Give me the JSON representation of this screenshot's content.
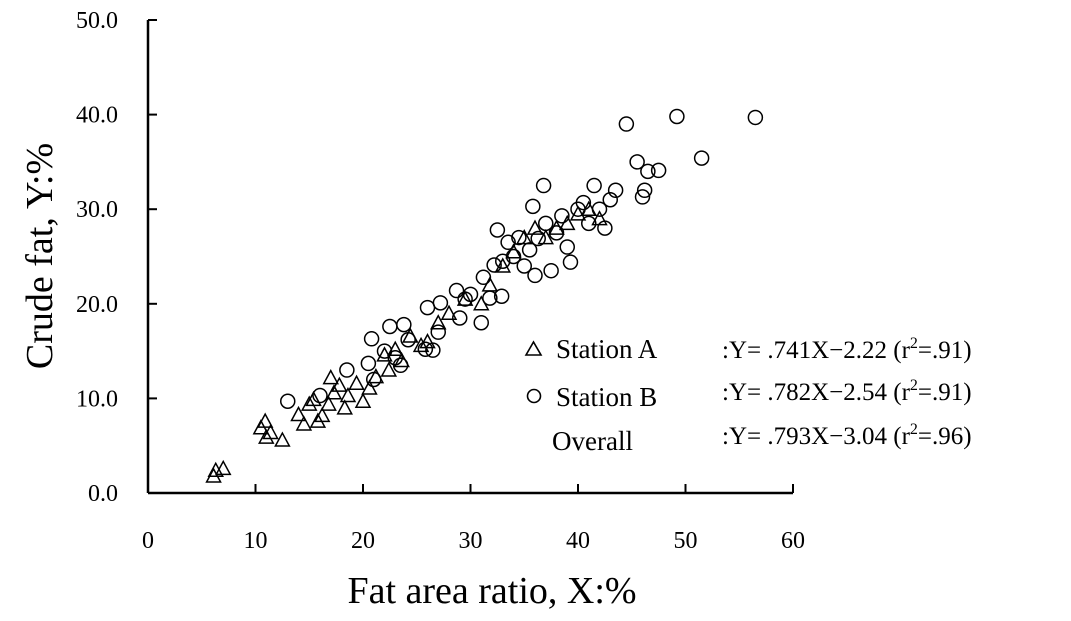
{
  "chart_data": {
    "type": "scatter",
    "title": "",
    "xlabel": "Fat area ratio, X:%",
    "ylabel": "Crude fat, Y:%",
    "xlim": [
      0,
      60
    ],
    "ylim": [
      0,
      50
    ],
    "x_ticks": [
      "0",
      "10",
      "20",
      "30",
      "40",
      "50",
      "60"
    ],
    "y_ticks": [
      "0.0",
      "10.0",
      "20.0",
      "30.0",
      "40.0",
      "50.0"
    ],
    "grid": false,
    "legend_position": "right-center",
    "series": [
      {
        "name": "Station A",
        "marker": "triangle",
        "equation_prefix": ":Y= .741X",
        "equation_rest": "2.22 (r",
        "equation_sup": "2",
        "equation_end": "=.91)",
        "points": [
          [
            6.1,
            1.8
          ],
          [
            6.3,
            2.4
          ],
          [
            7.0,
            2.6
          ],
          [
            10.5,
            6.9
          ],
          [
            10.9,
            7.6
          ],
          [
            11.0,
            5.9
          ],
          [
            11.4,
            6.4
          ],
          [
            12.5,
            5.6
          ],
          [
            14.0,
            8.3
          ],
          [
            14.5,
            7.3
          ],
          [
            15.0,
            9.4
          ],
          [
            15.4,
            9.9
          ],
          [
            15.8,
            7.6
          ],
          [
            16.2,
            8.2
          ],
          [
            16.8,
            9.4
          ],
          [
            17.0,
            12.2
          ],
          [
            17.3,
            10.6
          ],
          [
            17.8,
            11.4
          ],
          [
            18.3,
            9.0
          ],
          [
            18.6,
            10.3
          ],
          [
            19.4,
            11.6
          ],
          [
            20.0,
            9.7
          ],
          [
            20.6,
            11.1
          ],
          [
            21.2,
            12.3
          ],
          [
            22.0,
            14.6
          ],
          [
            22.4,
            13.0
          ],
          [
            23.0,
            15.2
          ],
          [
            23.6,
            14.0
          ],
          [
            24.4,
            16.6
          ],
          [
            25.4,
            15.6
          ],
          [
            26.0,
            16.0
          ],
          [
            27.0,
            18.0
          ],
          [
            28.0,
            19.0
          ],
          [
            29.5,
            20.5
          ],
          [
            31.0,
            20.0
          ],
          [
            31.8,
            22.0
          ],
          [
            33.0,
            24.0
          ],
          [
            34.0,
            25.5
          ],
          [
            35.0,
            27.0
          ],
          [
            36.0,
            28.0
          ],
          [
            37.0,
            27.0
          ],
          [
            38.0,
            28.0
          ],
          [
            39.0,
            28.5
          ],
          [
            40.0,
            29.5
          ],
          [
            41.0,
            30.0
          ],
          [
            42.0,
            29.0
          ]
        ]
      },
      {
        "name": "Station B",
        "marker": "circle",
        "equation_prefix": ":Y= .782X",
        "equation_rest": "2.54 (r",
        "equation_sup": "2",
        "equation_end": "=.91)",
        "points": [
          [
            13.0,
            9.7
          ],
          [
            16.0,
            10.3
          ],
          [
            18.5,
            13.0
          ],
          [
            20.5,
            13.7
          ],
          [
            20.8,
            16.3
          ],
          [
            21.0,
            12.0
          ],
          [
            22.0,
            15.0
          ],
          [
            22.5,
            17.6
          ],
          [
            23.0,
            14.3
          ],
          [
            23.5,
            13.5
          ],
          [
            23.8,
            17.8
          ],
          [
            24.2,
            16.2
          ],
          [
            25.8,
            15.2
          ],
          [
            26.0,
            19.6
          ],
          [
            26.5,
            15.1
          ],
          [
            27.0,
            17.0
          ],
          [
            27.2,
            20.1
          ],
          [
            28.7,
            21.4
          ],
          [
            29.0,
            18.5
          ],
          [
            29.5,
            20.5
          ],
          [
            30.0,
            21.0
          ],
          [
            31.0,
            18.0
          ],
          [
            31.2,
            22.8
          ],
          [
            31.8,
            20.6
          ],
          [
            32.2,
            24.1
          ],
          [
            32.5,
            27.8
          ],
          [
            32.9,
            20.8
          ],
          [
            33.0,
            24.5
          ],
          [
            33.5,
            26.5
          ],
          [
            34.0,
            25.0
          ],
          [
            34.5,
            27.0
          ],
          [
            35.0,
            24.0
          ],
          [
            35.5,
            25.7
          ],
          [
            35.8,
            30.3
          ],
          [
            36.0,
            23.0
          ],
          [
            36.3,
            26.9
          ],
          [
            36.8,
            32.5
          ],
          [
            37.0,
            28.5
          ],
          [
            37.5,
            23.5
          ],
          [
            38.0,
            27.5
          ],
          [
            38.5,
            29.3
          ],
          [
            39.0,
            26.0
          ],
          [
            39.3,
            24.4
          ],
          [
            40.0,
            30.0
          ],
          [
            40.5,
            30.7
          ],
          [
            41.0,
            28.5
          ],
          [
            41.5,
            32.5
          ],
          [
            42.0,
            30.0
          ],
          [
            42.5,
            28.0
          ],
          [
            43.0,
            31.0
          ],
          [
            43.5,
            32.0
          ],
          [
            44.5,
            39.0
          ],
          [
            45.5,
            35.0
          ],
          [
            46.0,
            31.3
          ],
          [
            46.2,
            32.0
          ],
          [
            46.5,
            34.0
          ],
          [
            47.5,
            34.1
          ],
          [
            49.2,
            39.8
          ],
          [
            51.5,
            35.4
          ],
          [
            56.5,
            39.7
          ]
        ]
      }
    ],
    "overall": {
      "label": "Overall",
      "equation_prefix": ":Y= .793X",
      "equation_rest": "3.04 (r",
      "equation_sup": "2",
      "equation_end": "=.96)"
    }
  }
}
